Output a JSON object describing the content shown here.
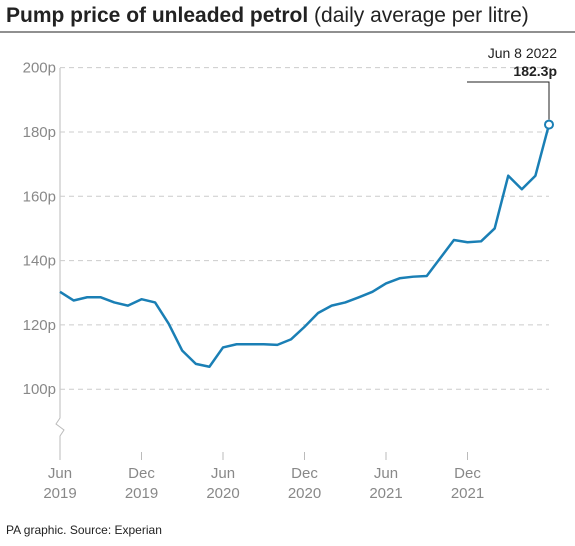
{
  "chart_data": {
    "type": "line",
    "title": "Pump price of unleaded petrol",
    "subtitle": "(daily average per litre)",
    "source": "PA graphic. Source: Experian",
    "x": [
      "2019-06",
      "2019-07",
      "2019-08",
      "2019-09",
      "2019-10",
      "2019-11",
      "2019-12",
      "2020-01",
      "2020-02",
      "2020-03",
      "2020-04",
      "2020-05",
      "2020-06",
      "2020-07",
      "2020-08",
      "2020-09",
      "2020-10",
      "2020-11",
      "2020-12",
      "2021-01",
      "2021-02",
      "2021-03",
      "2021-04",
      "2021-05",
      "2021-06",
      "2021-07",
      "2021-08",
      "2021-09",
      "2021-10",
      "2021-11",
      "2021-12",
      "2022-01",
      "2022-02",
      "2022-03",
      "2022-04",
      "2022-05",
      "2022-06"
    ],
    "series": [
      {
        "name": "Unleaded petrol",
        "color": "#1a7fb5",
        "values": [
          130.3,
          127.6,
          128.6,
          128.6,
          127,
          126,
          128,
          127,
          120.4,
          112,
          107.9,
          107,
          113,
          114,
          114,
          114,
          113.8,
          115.5,
          119.4,
          123.7,
          126,
          127,
          128.6,
          130.3,
          132.9,
          134.5,
          135,
          135.2,
          140.8,
          146.4,
          145.7,
          146,
          150,
          166.4,
          162.2,
          166.4,
          182.3
        ]
      }
    ],
    "annotation": {
      "label": "Jun 8 2022",
      "value": 182.3,
      "value_label": "182.3p"
    },
    "xlim": [
      "2019-06",
      "2022-06"
    ],
    "xticks": [
      {
        "value": "2019-06",
        "label": [
          "Jun",
          "2019"
        ]
      },
      {
        "value": "2019-12",
        "label": [
          "Dec",
          "2019"
        ]
      },
      {
        "value": "2020-06",
        "label": [
          "Jun",
          "2020"
        ]
      },
      {
        "value": "2020-12",
        "label": [
          "Dec",
          "2020"
        ]
      },
      {
        "value": "2021-06",
        "label": [
          "Jun",
          "2021"
        ]
      },
      {
        "value": "2021-12",
        "label": [
          "Dec",
          "2021"
        ]
      }
    ],
    "ylim": [
      78,
      203
    ],
    "yticks": [
      {
        "value": 100,
        "label": "100p"
      },
      {
        "value": 120,
        "label": "120p"
      },
      {
        "value": 140,
        "label": "140p"
      },
      {
        "value": 160,
        "label": "160p"
      },
      {
        "value": 180,
        "label": "180p"
      },
      {
        "value": 200,
        "label": "200p"
      }
    ],
    "grid": true
  }
}
